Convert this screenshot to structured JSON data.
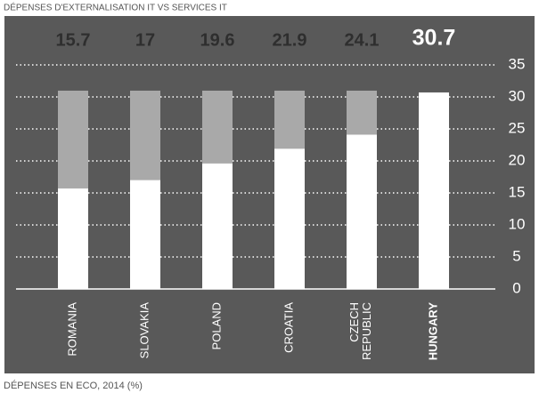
{
  "chart_data": {
    "type": "bar",
    "title": "DÉPENSES D'EXTERNALISATION IT VS SERVICES IT",
    "footnote": "DÉPENSES EN ECO, 2014 (%)",
    "categories": [
      "ROMANIA",
      "SLOVAKIA",
      "POLAND",
      "CROATIA",
      "CZECH REPUBLIC",
      "HUNGARY"
    ],
    "values": [
      15.7,
      17,
      19.6,
      21.9,
      24.1,
      30.7
    ],
    "color": "#ffffff",
    "reference_color": "#a9a9a9",
    "background": "#595959",
    "ylim": [
      0,
      35
    ],
    "yticks": [
      0,
      5,
      10,
      15,
      20,
      25,
      30,
      35
    ],
    "grid": true,
    "highlight": "HUNGARY"
  }
}
